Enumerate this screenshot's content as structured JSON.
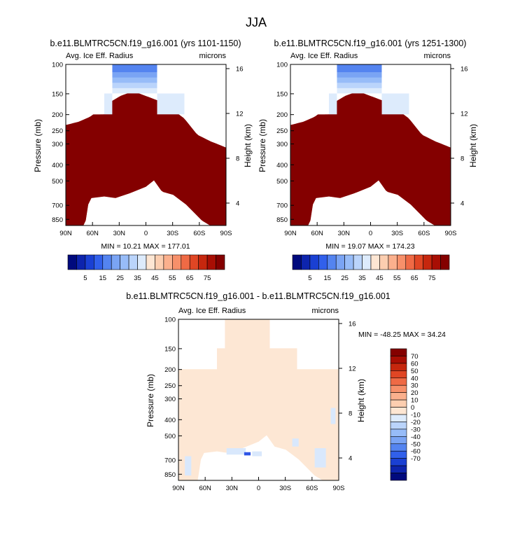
{
  "figure": {
    "title": "JJA"
  },
  "colors": {
    "pos": [
      "#fde6d3",
      "#fcceb0",
      "#fbb08d",
      "#f7906a",
      "#ef6a45",
      "#e04624",
      "#c6270e",
      "#a80e04",
      "#840000"
    ],
    "neg": [
      "#ddebfc",
      "#bad4fb",
      "#97bcf8",
      "#7aa4f4",
      "#5484f0",
      "#3160eb",
      "#1a40d3",
      "#0d24ad",
      "#000a7d"
    ],
    "white": "#ffffff",
    "diff_pos": "#fde7d4",
    "diff_neg": "#d9e8fc",
    "diff_neg2": "#2f55e6"
  },
  "common": {
    "subtitle_left": "Avg. Ice Eff. Radius",
    "subtitle_right": "microns",
    "ylabel": "Pressure (mb)",
    "ylabel_right": "Height (km)"
  },
  "chart_data": [
    {
      "type": "heatmap",
      "title": "b.e11.BLMTRC5CN.f19_g16.001 (yrs 1101-1150)",
      "x": [
        "90N",
        "60N",
        "30N",
        "0",
        "30S",
        "60S",
        "90S"
      ],
      "x_values": [
        90,
        60,
        30,
        0,
        -30,
        -60,
        -90
      ],
      "y_ticks": [
        100,
        150,
        200,
        250,
        300,
        400,
        500,
        700,
        850
      ],
      "y_right_ticks": [
        16,
        12,
        8,
        4
      ],
      "ylim": [
        100,
        925
      ],
      "xlim": [
        90,
        -90
      ],
      "summary": "MIN =  10.21   MAX = 177.01",
      "min": 10.21,
      "max": 177.01,
      "cbar_labels": [
        "5",
        "15",
        "25",
        "35",
        "45",
        "55",
        "65",
        "75"
      ]
    },
    {
      "type": "heatmap",
      "title": "b.e11.BLMTRC5CN.f19_g16.001 (yrs 1251-1300)",
      "x": [
        "90N",
        "60N",
        "30N",
        "0",
        "30S",
        "60S",
        "90S"
      ],
      "x_values": [
        90,
        60,
        30,
        0,
        -30,
        -60,
        -90
      ],
      "y_ticks": [
        100,
        150,
        200,
        250,
        300,
        400,
        500,
        700,
        850
      ],
      "y_right_ticks": [
        16,
        12,
        8,
        4
      ],
      "ylim": [
        100,
        925
      ],
      "xlim": [
        90,
        -90
      ],
      "summary": "MIN =  19.07   MAX = 174.23",
      "min": 19.07,
      "max": 174.23,
      "cbar_labels": [
        "5",
        "15",
        "25",
        "35",
        "45",
        "55",
        "65",
        "75"
      ]
    },
    {
      "type": "heatmap",
      "title": "b.e11.BLMTRC5CN.f19_g16.001 - b.e11.BLMTRC5CN.f19_g16.001",
      "x": [
        "90N",
        "60N",
        "30N",
        "0",
        "30S",
        "60S",
        "90S"
      ],
      "x_values": [
        90,
        60,
        30,
        0,
        -30,
        -60,
        -90
      ],
      "y_ticks": [
        100,
        150,
        200,
        250,
        300,
        400,
        500,
        700,
        850
      ],
      "y_right_ticks": [
        16,
        12,
        8,
        4
      ],
      "ylim": [
        100,
        925
      ],
      "xlim": [
        90,
        -90
      ],
      "summary": "MIN = -48.25   MAX =  34.24",
      "min": -48.25,
      "max": 34.24,
      "cbar_labels": [
        "70",
        "60",
        "50",
        "40",
        "30",
        "20",
        "10",
        "0",
        "-10",
        "-20",
        "-30",
        "-40",
        "-50",
        "-60",
        "-70"
      ]
    }
  ]
}
